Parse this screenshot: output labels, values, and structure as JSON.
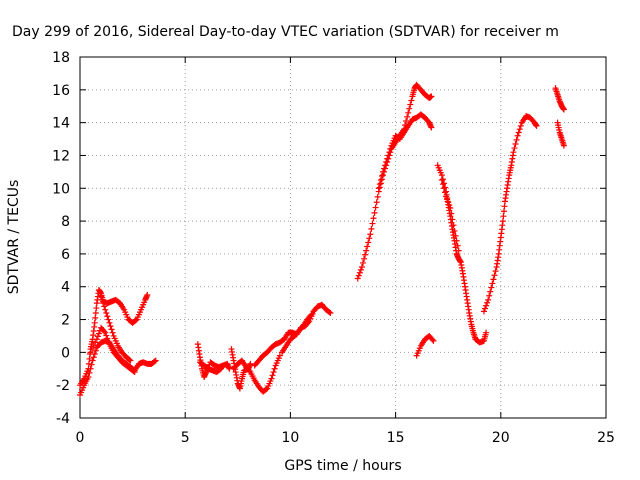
{
  "chart_data": {
    "type": "scatter",
    "title": "Day 299 of 2016, Sidereal Day-to-day VTEC variation (SDTVAR) for receiver m",
    "xlabel": "GPS time / hours",
    "ylabel": "SDTVAR / TECUs",
    "xlim": [
      0,
      25
    ],
    "ylim": [
      -4,
      18
    ],
    "xticks": [
      0,
      5,
      10,
      15,
      20,
      25
    ],
    "yticks": [
      -4,
      -2,
      0,
      2,
      4,
      6,
      8,
      10,
      12,
      14,
      16,
      18
    ],
    "grid": true,
    "legend": "none",
    "marker": "plus",
    "color": "#ff0000",
    "series": [
      {
        "segments": [
          [
            [
              0.0,
              -2.6
            ],
            [
              0.2,
              -2.0
            ],
            [
              0.4,
              -1.5
            ],
            [
              0.6,
              -0.5
            ],
            [
              0.8,
              0.3
            ],
            [
              1.0,
              0.6
            ],
            [
              1.2,
              0.7
            ],
            [
              1.4,
              0.6
            ],
            [
              1.6,
              0.2
            ],
            [
              1.8,
              -0.2
            ],
            [
              2.0,
              -0.5
            ],
            [
              2.2,
              -0.7
            ],
            [
              2.4,
              -0.9
            ],
            [
              2.6,
              -1.1
            ],
            [
              2.8,
              -0.7
            ],
            [
              3.0,
              -0.6
            ],
            [
              3.2,
              -0.7
            ],
            [
              3.4,
              -0.7
            ],
            [
              3.6,
              -0.5
            ]
          ],
          [
            [
              0.0,
              -2.0
            ],
            [
              0.2,
              -1.6
            ],
            [
              0.4,
              -1.0
            ],
            [
              0.5,
              0.2
            ],
            [
              0.6,
              0.8
            ],
            [
              0.7,
              1.8
            ],
            [
              0.8,
              3.0
            ],
            [
              0.9,
              3.8
            ],
            [
              1.0,
              3.6
            ],
            [
              1.1,
              3.1
            ],
            [
              1.3,
              3.0
            ],
            [
              1.5,
              3.1
            ],
            [
              1.7,
              3.2
            ],
            [
              1.9,
              3.0
            ],
            [
              2.1,
              2.6
            ],
            [
              2.3,
              2.0
            ],
            [
              2.5,
              1.8
            ],
            [
              2.7,
              2.0
            ],
            [
              2.9,
              2.6
            ],
            [
              3.1,
              3.2
            ],
            [
              3.2,
              3.5
            ]
          ],
          [
            [
              0.5,
              0.0
            ],
            [
              0.8,
              0.8
            ],
            [
              1.0,
              1.5
            ],
            [
              1.2,
              1.2
            ],
            [
              1.4,
              0.5
            ],
            [
              1.6,
              0.0
            ],
            [
              1.8,
              -0.3
            ],
            [
              2.0,
              -0.6
            ],
            [
              2.2,
              -0.8
            ],
            [
              2.4,
              -1.0
            ],
            [
              2.6,
              -1.2
            ]
          ],
          [
            [
              1.0,
              3.4
            ],
            [
              1.2,
              2.6
            ],
            [
              1.4,
              1.8
            ],
            [
              1.6,
              1.0
            ],
            [
              1.8,
              0.4
            ],
            [
              2.0,
              0.0
            ],
            [
              2.2,
              -0.3
            ],
            [
              2.4,
              -0.5
            ]
          ],
          [
            [
              5.6,
              0.5
            ],
            [
              5.7,
              -0.3
            ],
            [
              5.8,
              -1.0
            ],
            [
              5.9,
              -1.5
            ],
            [
              6.0,
              -1.2
            ],
            [
              6.2,
              -0.6
            ],
            [
              6.4,
              -0.8
            ],
            [
              6.6,
              -0.9
            ],
            [
              6.8,
              -0.8
            ],
            [
              7.0,
              -0.7
            ],
            [
              7.1,
              -1.0
            ]
          ],
          [
            [
              5.7,
              -0.6
            ],
            [
              5.9,
              -0.8
            ],
            [
              6.1,
              -1.0
            ],
            [
              6.3,
              -1.1
            ],
            [
              6.5,
              -1.2
            ],
            [
              6.7,
              -1.0
            ]
          ],
          [
            [
              7.2,
              0.2
            ],
            [
              7.3,
              -0.5
            ],
            [
              7.4,
              -1.2
            ],
            [
              7.5,
              -1.9
            ],
            [
              7.6,
              -2.2
            ],
            [
              7.7,
              -1.6
            ],
            [
              7.8,
              -1.1
            ],
            [
              8.0,
              -1.0
            ],
            [
              8.1,
              -0.7
            ]
          ],
          [
            [
              7.3,
              -1.0
            ],
            [
              7.5,
              -0.7
            ],
            [
              7.7,
              -0.5
            ],
            [
              7.9,
              -0.9
            ],
            [
              8.1,
              -1.2
            ],
            [
              8.3,
              -1.7
            ],
            [
              8.5,
              -2.1
            ],
            [
              8.7,
              -2.4
            ],
            [
              8.9,
              -2.2
            ],
            [
              9.1,
              -1.6
            ],
            [
              9.3,
              -0.8
            ],
            [
              9.5,
              -0.2
            ]
          ],
          [
            [
              8.3,
              -0.8
            ],
            [
              8.5,
              -0.5
            ],
            [
              8.7,
              -0.2
            ],
            [
              8.9,
              0.0
            ],
            [
              9.1,
              0.3
            ],
            [
              9.3,
              0.5
            ],
            [
              9.5,
              0.6
            ],
            [
              9.7,
              0.8
            ],
            [
              9.9,
              1.2
            ],
            [
              10.1,
              1.2
            ],
            [
              10.3,
              1.1
            ],
            [
              10.5,
              1.5
            ],
            [
              10.7,
              1.6
            ],
            [
              10.9,
              1.9
            ],
            [
              11.1,
              2.5
            ],
            [
              11.3,
              2.8
            ],
            [
              11.5,
              2.9
            ],
            [
              11.7,
              2.6
            ],
            [
              11.9,
              2.4
            ]
          ],
          [
            [
              9.6,
              0.0
            ],
            [
              9.8,
              0.4
            ],
            [
              10.0,
              0.8
            ],
            [
              10.2,
              1.0
            ],
            [
              10.4,
              1.3
            ],
            [
              10.6,
              1.6
            ],
            [
              10.8,
              2.0
            ],
            [
              11.0,
              2.3
            ]
          ],
          [
            [
              13.2,
              4.5
            ],
            [
              13.4,
              5.2
            ],
            [
              13.6,
              6.2
            ],
            [
              13.8,
              7.2
            ],
            [
              14.0,
              8.5
            ],
            [
              14.2,
              9.8
            ],
            [
              14.4,
              10.8
            ],
            [
              14.6,
              11.6
            ],
            [
              14.8,
              12.4
            ],
            [
              15.0,
              12.8
            ],
            [
              15.2,
              13.2
            ],
            [
              15.4,
              13.6
            ],
            [
              15.6,
              14.6
            ],
            [
              15.8,
              15.6
            ],
            [
              15.9,
              16.1
            ],
            [
              16.0,
              16.3
            ],
            [
              16.2,
              16.0
            ],
            [
              16.4,
              15.7
            ],
            [
              16.6,
              15.5
            ],
            [
              16.7,
              15.6
            ]
          ],
          [
            [
              14.2,
              10.0
            ],
            [
              14.4,
              11.0
            ],
            [
              14.6,
              11.8
            ],
            [
              14.8,
              12.6
            ],
            [
              15.0,
              13.2
            ],
            [
              15.2,
              13.0
            ],
            [
              15.4,
              13.4
            ],
            [
              15.6,
              13.8
            ],
            [
              15.8,
              14.2
            ],
            [
              16.0,
              14.3
            ],
            [
              16.2,
              14.5
            ],
            [
              16.4,
              14.3
            ],
            [
              16.6,
              14.0
            ],
            [
              16.7,
              13.7
            ]
          ],
          [
            [
              16.0,
              -0.2
            ],
            [
              16.2,
              0.4
            ],
            [
              16.4,
              0.8
            ],
            [
              16.6,
              1.0
            ],
            [
              16.8,
              0.7
            ]
          ],
          [
            [
              17.0,
              11.4
            ],
            [
              17.2,
              10.8
            ],
            [
              17.4,
              9.8
            ],
            [
              17.5,
              9.0
            ],
            [
              17.6,
              8.3
            ],
            [
              17.7,
              7.5
            ],
            [
              17.8,
              6.8
            ],
            [
              17.9,
              6.0
            ],
            [
              18.0,
              5.7
            ],
            [
              18.1,
              5.5
            ],
            [
              18.2,
              4.8
            ],
            [
              18.3,
              4.0
            ],
            [
              18.4,
              3.2
            ],
            [
              18.5,
              2.4
            ],
            [
              18.6,
              1.7
            ],
            [
              18.7,
              1.2
            ],
            [
              18.8,
              0.8
            ],
            [
              19.0,
              0.6
            ],
            [
              19.2,
              0.7
            ],
            [
              19.3,
              1.2
            ]
          ],
          [
            [
              17.2,
              10.5
            ],
            [
              17.4,
              9.5
            ],
            [
              17.6,
              8.8
            ],
            [
              17.8,
              7.4
            ],
            [
              18.0,
              6.2
            ]
          ],
          [
            [
              19.2,
              2.5
            ],
            [
              19.4,
              3.2
            ],
            [
              19.6,
              4.2
            ],
            [
              19.8,
              5.2
            ],
            [
              19.9,
              6.0
            ],
            [
              20.0,
              7.0
            ],
            [
              20.1,
              8.0
            ],
            [
              20.2,
              9.2
            ],
            [
              20.3,
              10.0
            ],
            [
              20.4,
              10.8
            ],
            [
              20.5,
              11.4
            ],
            [
              20.6,
              12.2
            ],
            [
              20.8,
              13.2
            ],
            [
              21.0,
              14.0
            ],
            [
              21.2,
              14.4
            ],
            [
              21.4,
              14.3
            ],
            [
              21.6,
              14.0
            ],
            [
              21.7,
              13.8
            ]
          ],
          [
            [
              22.6,
              16.1
            ],
            [
              22.7,
              15.7
            ],
            [
              22.8,
              15.3
            ],
            [
              22.9,
              15.0
            ],
            [
              23.0,
              14.8
            ]
          ],
          [
            [
              22.7,
              14.0
            ],
            [
              22.8,
              13.4
            ],
            [
              22.9,
              13.0
            ],
            [
              23.0,
              12.6
            ]
          ]
        ]
      }
    ]
  }
}
